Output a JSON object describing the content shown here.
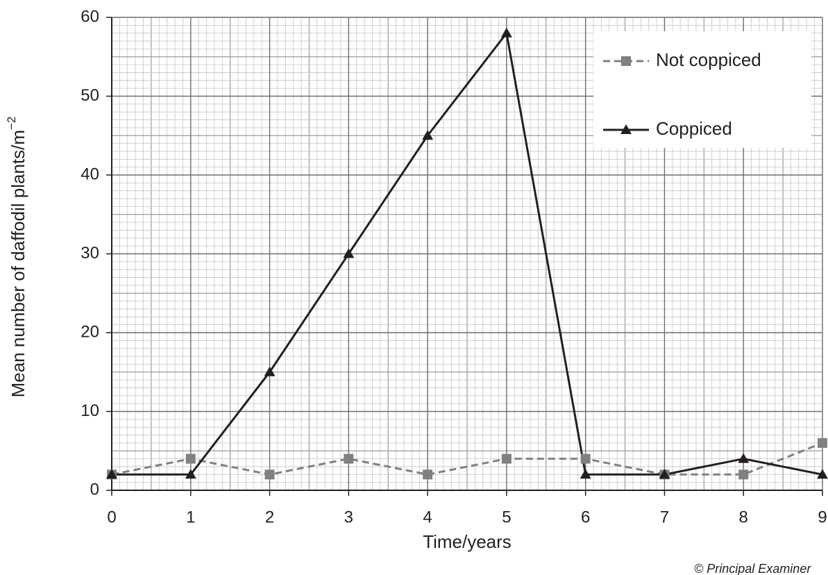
{
  "chart_data": {
    "type": "line",
    "xlabel": "Time/years",
    "ylabel": "Mean number of daffodil plants/m",
    "ylabel_superscript": "−2",
    "footnote": "© Principal Examiner",
    "x": [
      0,
      1,
      2,
      3,
      4,
      5,
      6,
      7,
      8,
      9
    ],
    "series": [
      {
        "name": "Not coppiced",
        "color": "#808080",
        "dashed": true,
        "marker": "square",
        "values": [
          2,
          4,
          2,
          4,
          2,
          4,
          4,
          2,
          2,
          6
        ]
      },
      {
        "name": "Coppiced",
        "color": "#231f20",
        "dashed": false,
        "marker": "triangle",
        "values": [
          2,
          2,
          15,
          30,
          45,
          58,
          2,
          2,
          4,
          2
        ]
      }
    ],
    "xlim": [
      0,
      9
    ],
    "xticks": [
      0,
      1,
      2,
      3,
      4,
      5,
      6,
      7,
      8,
      9
    ],
    "ylim": [
      0,
      60
    ],
    "yticks": [
      0,
      10,
      20,
      30,
      40,
      50,
      60
    ],
    "grid": true,
    "minor_grid": 10,
    "legend": "upper right"
  }
}
